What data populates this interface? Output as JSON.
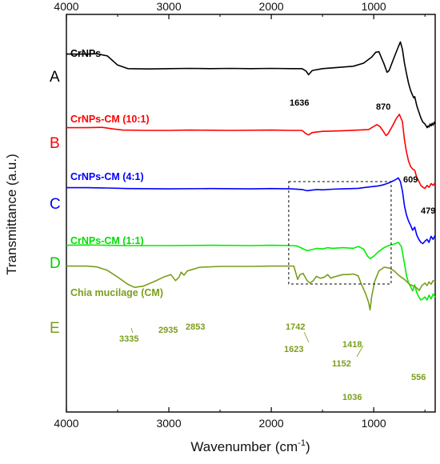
{
  "chart_data": {
    "type": "line",
    "xlabel": "Wavenumber",
    "xlabel_unit": "(cm",
    "xlabel_unit_sup": "-1",
    "xlabel_unit_close": ")",
    "ylabel": "Transmittance (a.u.)",
    "xlim": [
      4000,
      400
    ],
    "x_reversed": true,
    "x_ticks": [
      4000,
      3000,
      2000,
      1000
    ],
    "x_tick_labels": [
      "4000",
      "3000",
      "2000",
      "1000"
    ],
    "mirror_top_axis": true,
    "grid": false,
    "y_units": "arbitrary, offset stack (relative transmittance 0-1 per trace)",
    "series": [
      {
        "letter": "A",
        "name": "CrNPs",
        "color": "#000000",
        "points": [
          [
            4000,
            0.9
          ],
          [
            3800,
            0.9
          ],
          [
            3700,
            0.905
          ],
          [
            3600,
            0.87
          ],
          [
            3500,
            0.72
          ],
          [
            3400,
            0.66
          ],
          [
            3200,
            0.655
          ],
          [
            3000,
            0.66
          ],
          [
            2800,
            0.665
          ],
          [
            2600,
            0.66
          ],
          [
            2400,
            0.665
          ],
          [
            2200,
            0.66
          ],
          [
            2000,
            0.665
          ],
          [
            1800,
            0.66
          ],
          [
            1700,
            0.66
          ],
          [
            1660,
            0.62
          ],
          [
            1636,
            0.56
          ],
          [
            1600,
            0.63
          ],
          [
            1500,
            0.66
          ],
          [
            1350,
            0.68
          ],
          [
            1200,
            0.7
          ],
          [
            1100,
            0.75
          ],
          [
            1020,
            0.85
          ],
          [
            980,
            0.93
          ],
          [
            950,
            0.94
          ],
          [
            920,
            0.82
          ],
          [
            900,
            0.74
          ],
          [
            870,
            0.6
          ],
          [
            850,
            0.63
          ],
          [
            800,
            0.85
          ],
          [
            760,
            1.02
          ],
          [
            740,
            1.1
          ],
          [
            720,
            0.98
          ],
          [
            700,
            0.75
          ],
          [
            680,
            0.58
          ],
          [
            660,
            0.42
          ],
          [
            640,
            0.3
          ],
          [
            620,
            0.22
          ],
          [
            609,
            0.18
          ],
          [
            600,
            0.2
          ],
          [
            580,
            0.05
          ],
          [
            560,
            -0.05
          ],
          [
            540,
            -0.15
          ],
          [
            520,
            -0.22
          ],
          [
            500,
            -0.25
          ],
          [
            479,
            -0.31
          ],
          [
            470,
            -0.28
          ],
          [
            460,
            -0.3
          ],
          [
            450,
            -0.25
          ],
          [
            440,
            -0.28
          ],
          [
            430,
            -0.24
          ],
          [
            420,
            -0.27
          ],
          [
            410,
            -0.22
          ],
          [
            400,
            -0.25
          ]
        ],
        "peaks": [
          "1636",
          "870",
          "609",
          "479"
        ]
      },
      {
        "letter": "B",
        "name": "CrNPs-CM (10:1)",
        "color": "#ff0000",
        "points": [
          [
            4000,
            0.9
          ],
          [
            3800,
            0.9
          ],
          [
            3650,
            0.905
          ],
          [
            3550,
            0.88
          ],
          [
            3450,
            0.86
          ],
          [
            3200,
            0.855
          ],
          [
            3000,
            0.855
          ],
          [
            2800,
            0.86
          ],
          [
            2400,
            0.855
          ],
          [
            2000,
            0.86
          ],
          [
            1800,
            0.855
          ],
          [
            1700,
            0.855
          ],
          [
            1660,
            0.8
          ],
          [
            1636,
            0.78
          ],
          [
            1600,
            0.82
          ],
          [
            1500,
            0.84
          ],
          [
            1300,
            0.85
          ],
          [
            1150,
            0.86
          ],
          [
            1050,
            0.87
          ],
          [
            1000,
            0.92
          ],
          [
            970,
            0.95
          ],
          [
            940,
            0.92
          ],
          [
            910,
            0.85
          ],
          [
            880,
            0.77
          ],
          [
            860,
            0.8
          ],
          [
            820,
            0.92
          ],
          [
            780,
            1.05
          ],
          [
            750,
            1.12
          ],
          [
            720,
            1.0
          ],
          [
            700,
            0.7
          ],
          [
            680,
            0.5
          ],
          [
            660,
            0.35
          ],
          [
            640,
            0.26
          ],
          [
            620,
            0.22
          ],
          [
            600,
            0.2
          ],
          [
            580,
            0.08
          ],
          [
            560,
            0.02
          ],
          [
            540,
            -0.05
          ],
          [
            520,
            -0.08
          ],
          [
            500,
            -0.1
          ],
          [
            480,
            -0.05
          ],
          [
            460,
            -0.08
          ],
          [
            440,
            -0.02
          ],
          [
            420,
            -0.05
          ],
          [
            400,
            0.0
          ]
        ],
        "peaks": []
      },
      {
        "letter": "C",
        "name": "CrNPs-CM (4:1)",
        "color": "#0000ff",
        "points": [
          [
            4000,
            0.9
          ],
          [
            3800,
            0.9
          ],
          [
            3600,
            0.895
          ],
          [
            3400,
            0.885
          ],
          [
            3000,
            0.88
          ],
          [
            2600,
            0.885
          ],
          [
            2200,
            0.88
          ],
          [
            2000,
            0.885
          ],
          [
            1800,
            0.88
          ],
          [
            1700,
            0.87
          ],
          [
            1650,
            0.85
          ],
          [
            1600,
            0.86
          ],
          [
            1550,
            0.87
          ],
          [
            1500,
            0.865
          ],
          [
            1400,
            0.875
          ],
          [
            1300,
            0.88
          ],
          [
            1200,
            0.885
          ],
          [
            1150,
            0.89
          ],
          [
            1100,
            0.9
          ],
          [
            1050,
            0.91
          ],
          [
            1000,
            0.92
          ],
          [
            950,
            0.93
          ],
          [
            900,
            0.95
          ],
          [
            850,
            0.98
          ],
          [
            800,
            1.02
          ],
          [
            760,
            1.06
          ],
          [
            740,
            1.0
          ],
          [
            720,
            0.85
          ],
          [
            700,
            0.6
          ],
          [
            680,
            0.45
          ],
          [
            660,
            0.35
          ],
          [
            640,
            0.28
          ],
          [
            620,
            0.2
          ],
          [
            600,
            0.25
          ],
          [
            580,
            0.12
          ],
          [
            560,
            0.05
          ],
          [
            540,
            0.0
          ],
          [
            520,
            -0.02
          ],
          [
            500,
            0.02
          ],
          [
            480,
            0.05
          ],
          [
            460,
            0.0
          ],
          [
            440,
            0.1
          ],
          [
            420,
            0.05
          ],
          [
            400,
            0.12
          ]
        ],
        "peaks": []
      },
      {
        "letter": "D",
        "name": "CrNPs-CM (1:1)",
        "color": "#00ee00",
        "points": [
          [
            4000,
            0.9
          ],
          [
            3800,
            0.905
          ],
          [
            3600,
            0.9
          ],
          [
            3400,
            0.895
          ],
          [
            3000,
            0.895
          ],
          [
            2600,
            0.9
          ],
          [
            2200,
            0.895
          ],
          [
            2000,
            0.9
          ],
          [
            1800,
            0.895
          ],
          [
            1750,
            0.89
          ],
          [
            1700,
            0.85
          ],
          [
            1650,
            0.81
          ],
          [
            1600,
            0.83
          ],
          [
            1550,
            0.85
          ],
          [
            1500,
            0.84
          ],
          [
            1450,
            0.86
          ],
          [
            1400,
            0.85
          ],
          [
            1300,
            0.86
          ],
          [
            1200,
            0.85
          ],
          [
            1150,
            0.88
          ],
          [
            1100,
            0.84
          ],
          [
            1060,
            0.72
          ],
          [
            1036,
            0.68
          ],
          [
            1000,
            0.72
          ],
          [
            950,
            0.8
          ],
          [
            900,
            0.86
          ],
          [
            850,
            0.9
          ],
          [
            800,
            0.92
          ],
          [
            760,
            0.95
          ],
          [
            730,
            0.88
          ],
          [
            700,
            0.6
          ],
          [
            680,
            0.4
          ],
          [
            660,
            0.28
          ],
          [
            640,
            0.22
          ],
          [
            620,
            0.15
          ],
          [
            600,
            0.25
          ],
          [
            580,
            0.12
          ],
          [
            560,
            0.05
          ],
          [
            540,
            0.0
          ],
          [
            520,
            0.02
          ],
          [
            500,
            0.05
          ],
          [
            480,
            0.0
          ],
          [
            460,
            0.08
          ],
          [
            440,
            0.02
          ],
          [
            420,
            0.1
          ],
          [
            400,
            0.05
          ]
        ],
        "peaks": []
      },
      {
        "letter": "E",
        "name": "Chia mucilage (CM)",
        "color": "#7a9e1c",
        "points": [
          [
            4000,
            0.9
          ],
          [
            3800,
            0.9
          ],
          [
            3700,
            0.885
          ],
          [
            3600,
            0.83
          ],
          [
            3500,
            0.72
          ],
          [
            3400,
            0.6
          ],
          [
            3335,
            0.55
          ],
          [
            3250,
            0.57
          ],
          [
            3150,
            0.64
          ],
          [
            3050,
            0.72
          ],
          [
            2980,
            0.76
          ],
          [
            2935,
            0.66
          ],
          [
            2900,
            0.72
          ],
          [
            2880,
            0.8
          ],
          [
            2853,
            0.75
          ],
          [
            2820,
            0.82
          ],
          [
            2700,
            0.88
          ],
          [
            2500,
            0.895
          ],
          [
            2200,
            0.895
          ],
          [
            2000,
            0.9
          ],
          [
            1850,
            0.9
          ],
          [
            1780,
            0.9
          ],
          [
            1742,
            0.68
          ],
          [
            1720,
            0.76
          ],
          [
            1690,
            0.78
          ],
          [
            1650,
            0.66
          ],
          [
            1623,
            0.62
          ],
          [
            1590,
            0.66
          ],
          [
            1560,
            0.73
          ],
          [
            1520,
            0.7
          ],
          [
            1480,
            0.72
          ],
          [
            1450,
            0.76
          ],
          [
            1418,
            0.7
          ],
          [
            1390,
            0.72
          ],
          [
            1350,
            0.74
          ],
          [
            1300,
            0.76
          ],
          [
            1250,
            0.76
          ],
          [
            1200,
            0.77
          ],
          [
            1152,
            0.74
          ],
          [
            1120,
            0.6
          ],
          [
            1080,
            0.45
          ],
          [
            1050,
            0.3
          ],
          [
            1036,
            0.18
          ],
          [
            1020,
            0.4
          ],
          [
            990,
            0.65
          ],
          [
            950,
            0.82
          ],
          [
            900,
            0.88
          ],
          [
            850,
            0.87
          ],
          [
            800,
            0.82
          ],
          [
            750,
            0.74
          ],
          [
            700,
            0.68
          ],
          [
            650,
            0.6
          ],
          [
            600,
            0.56
          ],
          [
            580,
            0.54
          ],
          [
            556,
            0.5
          ],
          [
            530,
            0.58
          ],
          [
            500,
            0.62
          ],
          [
            480,
            0.58
          ],
          [
            460,
            0.64
          ],
          [
            440,
            0.6
          ],
          [
            420,
            0.66
          ],
          [
            400,
            0.64
          ]
        ],
        "peaks": [
          "3335",
          "2935",
          "2853",
          "1742",
          "1623",
          "1418",
          "1152",
          "1036",
          "556"
        ]
      }
    ],
    "annotations": [
      {
        "type": "dashed-box",
        "x_from": 1830,
        "x_to": 830,
        "spans_series": [
          "C",
          "D"
        ]
      }
    ]
  }
}
